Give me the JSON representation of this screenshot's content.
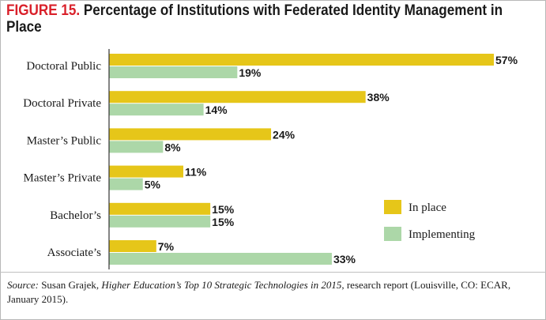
{
  "figure_label": "FIGURE 15.",
  "chart_data": {
    "type": "bar",
    "orientation": "horizontal",
    "title": "Percentage of Institutions with Federated Identity Management in Place",
    "categories": [
      "Doctoral Public",
      "Doctoral Private",
      "Master’s Public",
      "Master’s Private",
      "Bachelor’s",
      "Associate’s"
    ],
    "series": [
      {
        "name": "In place",
        "color": "#e6c619",
        "values": [
          57,
          38,
          24,
          11,
          15,
          7
        ]
      },
      {
        "name": "Implementing",
        "color": "#acd7a8",
        "values": [
          19,
          14,
          8,
          5,
          15,
          33
        ]
      }
    ],
    "value_suffix": "%",
    "xlim": [
      0,
      57
    ],
    "legend_position": "right",
    "grid": false
  },
  "source": {
    "label": "Source:",
    "author": "Susan Grajek,",
    "work": "Higher Education’s Top 10 Strategic Technologies in 2015",
    "rest": ", research report (Louisville, CO: ECAR, January 2015)."
  }
}
